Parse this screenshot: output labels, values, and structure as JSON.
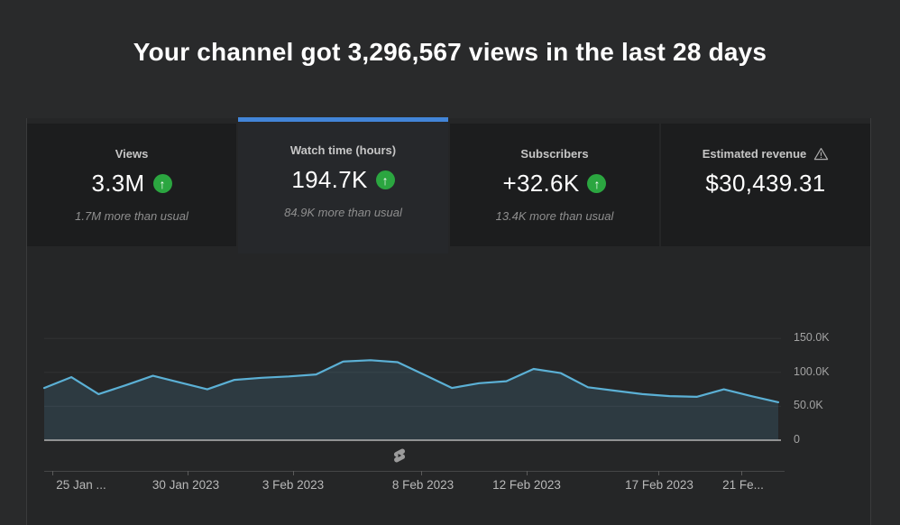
{
  "header": {
    "title": "Your channel got 3,296,567 views in the last 28 days"
  },
  "metric_cards": [
    {
      "label": "Views",
      "value": "3.3M",
      "note": "1.7M more than usual",
      "trend": "up",
      "selected": false
    },
    {
      "label": "Watch time (hours)",
      "value": "194.7K",
      "note": "84.9K more than usual",
      "trend": "up",
      "selected": true
    },
    {
      "label": "Subscribers",
      "value": "+32.6K",
      "note": "13.4K more than usual",
      "trend": "up",
      "selected": false
    },
    {
      "label": "Estimated revenue",
      "value": "$30,439.31",
      "note": "",
      "trend": "none",
      "selected": false,
      "warning_icon": true
    }
  ],
  "icons": {
    "trend_up_glyph": "↑",
    "warning": "warning-triangle-icon",
    "watermark": "youtube-shorts-icon"
  },
  "colors": {
    "accent_blue": "#4285d8",
    "trend_green": "#2ba640",
    "chart_line": "#5bb0d5",
    "chart_fill": "rgba(91,176,213,0.15)"
  },
  "chart_data": {
    "type": "area",
    "metric": "daily value for the last 28 days",
    "date_range": [
      "25 Jan 2023",
      "21 Feb 2023"
    ],
    "values_unit": "thousands",
    "values": [
      77,
      93,
      68,
      81,
      95,
      85,
      75,
      89,
      92,
      94,
      97,
      116,
      118,
      115,
      96,
      77,
      84,
      87,
      105,
      99,
      78,
      73,
      68,
      65,
      64,
      75,
      65,
      56
    ],
    "ylim": [
      0,
      172
    ],
    "y_tick_values": [
      150,
      100,
      50,
      0
    ],
    "y_tick_labels": [
      "150.0K",
      "100.0K",
      "50.0K",
      "0"
    ],
    "x_tick_labels": [
      "25 Jan ...",
      "30 Jan 2023",
      "3 Feb 2023",
      "8 Feb 2023",
      "12 Feb 2023",
      "17 Feb 2023",
      "21 Fe..."
    ],
    "grid": true,
    "legend": false
  }
}
